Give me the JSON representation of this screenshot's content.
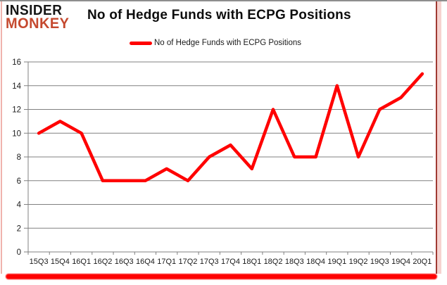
{
  "logo": {
    "line1": "INSIDER",
    "line2": "MONKEY"
  },
  "header": {
    "title": "No of Hedge Funds with ECPG Positions"
  },
  "legend": {
    "label": "No of Hedge Funds with ECPG Positions"
  },
  "colors": {
    "series_red": "#ff0000",
    "logo_black": "#151515",
    "logo_red": "#c5492f",
    "grid_gray": "#808080",
    "tick_label": "#1a1a1a",
    "bottom_bar_red": "#fe0202"
  },
  "chart_data": {
    "type": "line",
    "title": "No of Hedge Funds with ECPG Positions",
    "categories": [
      "15Q3",
      "15Q4",
      "16Q1",
      "16Q2",
      "16Q3",
      "16Q4",
      "17Q1",
      "17Q2",
      "17Q3",
      "17Q4",
      "18Q1",
      "18Q2",
      "18Q3",
      "18Q4",
      "19Q1",
      "19Q2",
      "19Q3",
      "19Q4",
      "20Q1"
    ],
    "series": [
      {
        "name": "No of Hedge Funds with ECPG Positions",
        "color": "#ff0000",
        "values": [
          10,
          11,
          10,
          6,
          6,
          6,
          7,
          6,
          8,
          9,
          7,
          12,
          8,
          8,
          14,
          8,
          12,
          13,
          15
        ]
      }
    ],
    "xlabel": "",
    "ylabel": "",
    "ylim": [
      0,
      16
    ],
    "yticks": [
      0,
      2,
      4,
      6,
      8,
      10,
      12,
      14,
      16
    ],
    "grid": "horizontal",
    "legend_position": "top"
  }
}
